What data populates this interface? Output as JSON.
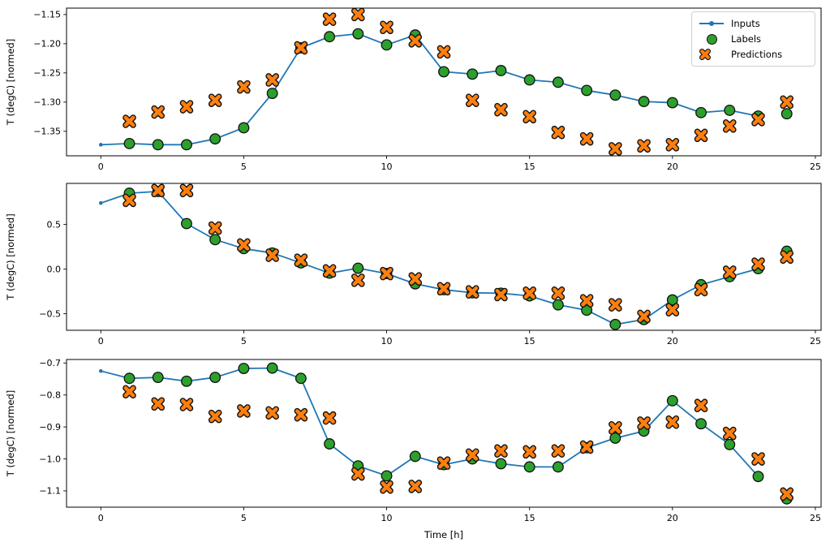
{
  "figure": {
    "xlabel": "Time [h]",
    "background": "#ffffff",
    "legend": {
      "items": [
        {
          "label": "Inputs",
          "marker": "line-dot-icon",
          "color": "#1f77b4"
        },
        {
          "label": "Labels",
          "marker": "circle-icon",
          "color": "#2ca02c"
        },
        {
          "label": "Predictions",
          "marker": "x-icon",
          "color": "#ff7f0e"
        }
      ]
    },
    "colors": {
      "inputs": "#1f77b4",
      "labels": "#2ca02c",
      "predictions": "#ff7f0e",
      "marker_edge": "#111111",
      "axis": "#000000"
    }
  },
  "chart_data": [
    {
      "type": "line",
      "title": "",
      "ylabel": "T (degC) [normed]",
      "xlabel": "",
      "grid": false,
      "xlim": [
        -1.2,
        25.2
      ],
      "ylim": [
        -1.392,
        -1.139
      ],
      "xtick_values": [
        0,
        5,
        10,
        15,
        20,
        25
      ],
      "xtick_labels": [
        "0",
        "5",
        "10",
        "15",
        "20",
        "25"
      ],
      "ytick_values": [
        -1.15,
        -1.2,
        -1.25,
        -1.3,
        -1.35
      ],
      "ytick_labels": [
        "−1.15",
        "−1.20",
        "−1.25",
        "−1.30",
        "−1.35"
      ],
      "series": [
        {
          "name": "Inputs",
          "style": "line-dot",
          "x": [
            0,
            1,
            2,
            3,
            4,
            5,
            6,
            7,
            8,
            9,
            10,
            11,
            12,
            13,
            14,
            15,
            16,
            17,
            18,
            19,
            20,
            21,
            22,
            23
          ],
          "y": [
            -1.373,
            -1.371,
            -1.373,
            -1.373,
            -1.363,
            -1.344,
            -1.285,
            -1.207,
            -1.188,
            -1.183,
            -1.202,
            -1.185,
            -1.248,
            -1.252,
            -1.246,
            -1.262,
            -1.266,
            -1.28,
            -1.288,
            -1.299,
            -1.301,
            -1.318,
            -1.314,
            -1.324
          ]
        },
        {
          "name": "Labels",
          "style": "scatter-circle",
          "x": [
            1,
            2,
            3,
            4,
            5,
            6,
            7,
            8,
            9,
            10,
            11,
            12,
            13,
            14,
            15,
            16,
            17,
            18,
            19,
            20,
            21,
            22,
            23,
            24
          ],
          "y": [
            -1.371,
            -1.373,
            -1.373,
            -1.363,
            -1.344,
            -1.285,
            -1.207,
            -1.188,
            -1.183,
            -1.202,
            -1.185,
            -1.248,
            -1.252,
            -1.246,
            -1.262,
            -1.266,
            -1.28,
            -1.288,
            -1.299,
            -1.301,
            -1.318,
            -1.314,
            -1.324,
            -1.32
          ]
        },
        {
          "name": "Predictions",
          "style": "scatter-x",
          "x": [
            1,
            2,
            3,
            4,
            5,
            6,
            7,
            8,
            9,
            10,
            11,
            12,
            13,
            14,
            15,
            16,
            17,
            18,
            19,
            20,
            21,
            22,
            23,
            24
          ],
          "y": [
            -1.333,
            -1.317,
            -1.308,
            -1.297,
            -1.274,
            -1.262,
            -1.207,
            -1.158,
            -1.15,
            -1.172,
            -1.195,
            -1.214,
            -1.297,
            -1.313,
            -1.325,
            -1.352,
            -1.363,
            -1.38,
            -1.375,
            -1.373,
            -1.357,
            -1.341,
            -1.33,
            -1.3
          ]
        }
      ]
    },
    {
      "type": "line",
      "title": "",
      "ylabel": "T (degC) [normed]",
      "xlabel": "",
      "grid": false,
      "xlim": [
        -1.2,
        25.2
      ],
      "ylim": [
        -0.685,
        0.96
      ],
      "xtick_values": [
        0,
        5,
        10,
        15,
        20,
        25
      ],
      "xtick_labels": [
        "0",
        "5",
        "10",
        "15",
        "20",
        "25"
      ],
      "ytick_values": [
        0.5,
        0.0,
        -0.5
      ],
      "ytick_labels": [
        "0.5",
        "0.0",
        "−0.5"
      ],
      "series": [
        {
          "name": "Inputs",
          "style": "line-dot",
          "x": [
            0,
            1,
            2,
            3,
            4,
            5,
            6,
            7,
            8,
            9,
            10,
            11,
            12,
            13,
            14,
            15,
            16,
            17,
            18,
            19,
            20,
            21,
            22,
            23
          ],
          "y": [
            0.74,
            0.85,
            0.87,
            0.51,
            0.33,
            0.23,
            0.18,
            0.07,
            -0.045,
            0.01,
            -0.05,
            -0.165,
            -0.23,
            -0.265,
            -0.27,
            -0.3,
            -0.4,
            -0.46,
            -0.62,
            -0.565,
            -0.345,
            -0.175,
            -0.085,
            0.005
          ]
        },
        {
          "name": "Labels",
          "style": "scatter-circle",
          "x": [
            1,
            2,
            3,
            4,
            5,
            6,
            7,
            8,
            9,
            10,
            11,
            12,
            13,
            14,
            15,
            16,
            17,
            18,
            19,
            20,
            21,
            22,
            23,
            24
          ],
          "y": [
            0.85,
            0.87,
            0.51,
            0.33,
            0.23,
            0.18,
            0.07,
            -0.045,
            0.01,
            -0.05,
            -0.165,
            -0.23,
            -0.265,
            -0.27,
            -0.3,
            -0.4,
            -0.46,
            -0.62,
            -0.565,
            -0.345,
            -0.175,
            -0.085,
            0.005,
            0.2
          ]
        },
        {
          "name": "Predictions",
          "style": "scatter-x",
          "x": [
            1,
            2,
            3,
            4,
            5,
            6,
            7,
            8,
            9,
            10,
            11,
            12,
            13,
            14,
            15,
            16,
            17,
            18,
            19,
            20,
            21,
            22,
            23,
            24
          ],
          "y": [
            0.77,
            0.88,
            0.88,
            0.46,
            0.27,
            0.155,
            0.1,
            -0.02,
            -0.125,
            -0.05,
            -0.11,
            -0.22,
            -0.255,
            -0.285,
            -0.27,
            -0.27,
            -0.355,
            -0.4,
            -0.53,
            -0.455,
            -0.23,
            -0.035,
            0.055,
            0.135
          ]
        }
      ]
    },
    {
      "type": "line",
      "title": "",
      "ylabel": "T (degC) [normed]",
      "xlabel": "Time [h]",
      "grid": false,
      "xlim": [
        -1.2,
        25.2
      ],
      "ylim": [
        -1.151,
        -0.689
      ],
      "xtick_values": [
        0,
        5,
        10,
        15,
        20,
        25
      ],
      "xtick_labels": [
        "0",
        "5",
        "10",
        "15",
        "20",
        "25"
      ],
      "ytick_values": [
        -0.7,
        -0.8,
        -0.9,
        -1.0,
        -1.1
      ],
      "ytick_labels": [
        "−0.7",
        "−0.8",
        "−0.9",
        "−1.0",
        "−1.1"
      ],
      "series": [
        {
          "name": "Inputs",
          "style": "line-dot",
          "x": [
            0,
            1,
            2,
            3,
            4,
            5,
            6,
            7,
            8,
            9,
            10,
            11,
            12,
            13,
            14,
            15,
            16,
            17,
            18,
            19,
            20,
            21,
            22,
            23
          ],
          "y": [
            -0.725,
            -0.748,
            -0.745,
            -0.757,
            -0.745,
            -0.717,
            -0.716,
            -0.748,
            -0.953,
            -1.022,
            -1.053,
            -0.992,
            -1.018,
            -1.0,
            -1.015,
            -1.025,
            -1.025,
            -0.965,
            -0.935,
            -0.913,
            -0.818,
            -0.89,
            -0.955,
            -1.055
          ]
        },
        {
          "name": "Labels",
          "style": "scatter-circle",
          "x": [
            1,
            2,
            3,
            4,
            5,
            6,
            7,
            8,
            9,
            10,
            11,
            12,
            13,
            14,
            15,
            16,
            17,
            18,
            19,
            20,
            21,
            22,
            23,
            24
          ],
          "y": [
            -0.748,
            -0.745,
            -0.757,
            -0.745,
            -0.717,
            -0.716,
            -0.748,
            -0.953,
            -1.022,
            -1.053,
            -0.992,
            -1.018,
            -1.0,
            -1.015,
            -1.025,
            -1.025,
            -0.965,
            -0.935,
            -0.913,
            -0.818,
            -0.89,
            -0.955,
            -1.055,
            -1.125
          ]
        },
        {
          "name": "Predictions",
          "style": "scatter-x",
          "x": [
            1,
            2,
            3,
            4,
            5,
            6,
            7,
            8,
            9,
            10,
            11,
            12,
            13,
            14,
            15,
            16,
            17,
            18,
            19,
            20,
            21,
            22,
            23,
            24
          ],
          "y": [
            -0.79,
            -0.828,
            -0.83,
            -0.867,
            -0.85,
            -0.856,
            -0.862,
            -0.872,
            -1.047,
            -1.088,
            -1.086,
            -1.013,
            -0.988,
            -0.975,
            -0.978,
            -0.975,
            -0.963,
            -0.903,
            -0.888,
            -0.885,
            -0.833,
            -0.92,
            -1.0,
            -1.11
          ]
        }
      ]
    }
  ]
}
